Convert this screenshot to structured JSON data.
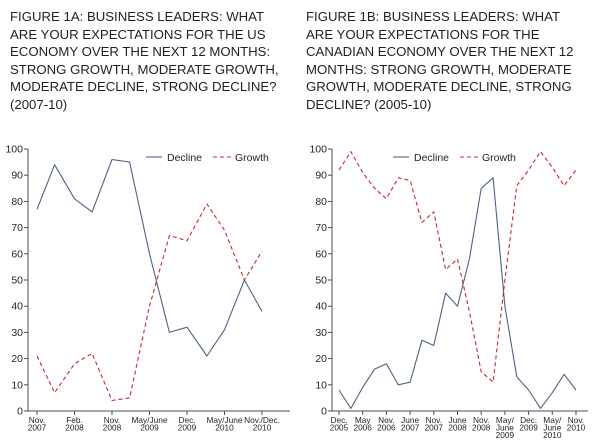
{
  "colors": {
    "text": "#231f20",
    "axis": "#4d4d4f",
    "decline": "#4f6384",
    "growth": "#c8262b"
  },
  "chart_data": [
    {
      "type": "line",
      "title": "FIGURE 1A: BUSINESS LEADERS: WHAT ARE YOUR EXPECTATIONS FOR THE US ECONOMY OVER THE NEXT 12 MONTHS: STRONG GROWTH, MODERATE GROWTH, MODERATE DECLINE, STRONG DECLINE? (2007-10)",
      "ylim": [
        0,
        100
      ],
      "yticks": [
        "0",
        "10",
        "20",
        "30",
        "40",
        "50",
        "60",
        "70",
        "80",
        "90",
        "100"
      ],
      "x_tick_labels": [
        {
          "line1": "Nov.",
          "line2": "2007",
          "at": 0
        },
        {
          "line1": "Feb.",
          "line2": "2008",
          "at": 1
        },
        {
          "line1": "Nov.",
          "line2": "2008",
          "at": 2
        },
        {
          "line1": "May/June",
          "line2": "2009",
          "at": 3
        },
        {
          "line1": "Dec.",
          "line2": "2009",
          "at": 4
        },
        {
          "line1": "May/June",
          "line2": "2010",
          "at": 5
        },
        {
          "line1": "Nov./Dec.",
          "line2": "2010",
          "at": 6
        }
      ],
      "legend": {
        "position": "top-right",
        "entries": [
          "Decline",
          "Growth"
        ]
      },
      "series": [
        {
          "name": "Decline",
          "style": "solid",
          "x": [
            0,
            0.47,
            1,
            1.47,
            2,
            2.47,
            3,
            3.53,
            4,
            4.53,
            5,
            5.53,
            6
          ],
          "values": [
            77,
            94,
            81,
            76,
            96,
            95,
            60,
            30,
            32,
            21,
            31,
            50,
            38
          ]
        },
        {
          "name": "Growth",
          "style": "dashed",
          "x": [
            0,
            0.47,
            1,
            1.47,
            2,
            2.47,
            3,
            3.53,
            4,
            4.53,
            5,
            5.53,
            6
          ],
          "values": [
            21,
            7,
            18,
            22,
            4,
            5,
            40,
            67,
            65,
            79,
            69,
            50,
            61
          ]
        }
      ]
    },
    {
      "type": "line",
      "title": "FIGURE 1B: BUSINESS LEADERS: WHAT ARE YOUR EXPECTATIONS FOR THE CANADIAN ECONOMY OVER THE NEXT 12 MONTHS: STRONG GROWTH, MODERATE GROWTH, MODERATE DECLINE, STRONG DECLINE? (2005-10)",
      "ylim": [
        0,
        100
      ],
      "yticks": [
        "0",
        "10",
        "20",
        "30",
        "40",
        "50",
        "60",
        "70",
        "80",
        "90",
        "100"
      ],
      "x_tick_labels": [
        {
          "line1": "Dec.",
          "line2": "2005",
          "line3": "",
          "at": 0
        },
        {
          "line1": "May",
          "line2": "2006",
          "line3": "",
          "at": 1
        },
        {
          "line1": "Nov.",
          "line2": "2006",
          "line3": "",
          "at": 2
        },
        {
          "line1": "June",
          "line2": "2007",
          "line3": "",
          "at": 3
        },
        {
          "line1": "Nov.",
          "line2": "2007",
          "line3": "",
          "at": 4
        },
        {
          "line1": "June",
          "line2": "2008",
          "line3": "",
          "at": 5
        },
        {
          "line1": "Nov.",
          "line2": "2008",
          "line3": "",
          "at": 6
        },
        {
          "line1": "May/",
          "line2": "June",
          "line3": "2009",
          "at": 7
        },
        {
          "line1": "Dec.",
          "line2": "2009",
          "line3": "",
          "at": 8
        },
        {
          "line1": "May/",
          "line2": "June",
          "line3": "2010",
          "at": 9
        },
        {
          "line1": "Nov.",
          "line2": "2010",
          "line3": "",
          "at": 10
        }
      ],
      "legend": {
        "position": "top-right",
        "entries": [
          "Decline",
          "Growth"
        ]
      },
      "series": [
        {
          "name": "Decline",
          "style": "solid",
          "x": [
            0,
            0.5,
            1,
            1.5,
            2,
            2.5,
            3,
            3.5,
            4,
            4.5,
            5,
            5.5,
            6,
            6.5,
            7,
            7.5,
            8,
            8.5,
            9,
            9.5,
            10
          ],
          "values": [
            8,
            1,
            9,
            16,
            18,
            10,
            11,
            27,
            25,
            45,
            40,
            58,
            85,
            89,
            40,
            13,
            8,
            1,
            7,
            14,
            8
          ]
        },
        {
          "name": "Growth",
          "style": "dashed",
          "x": [
            0,
            0.5,
            1,
            1.5,
            2,
            2.5,
            3,
            3.5,
            4,
            4.5,
            5,
            5.5,
            6,
            6.5,
            7,
            7.5,
            8,
            8.5,
            9,
            9.5,
            10
          ],
          "values": [
            92,
            99,
            91,
            85,
            81,
            89,
            88,
            72,
            76,
            54,
            58,
            38,
            15,
            11,
            50,
            86,
            92,
            99,
            93,
            86,
            92
          ]
        }
      ]
    }
  ]
}
